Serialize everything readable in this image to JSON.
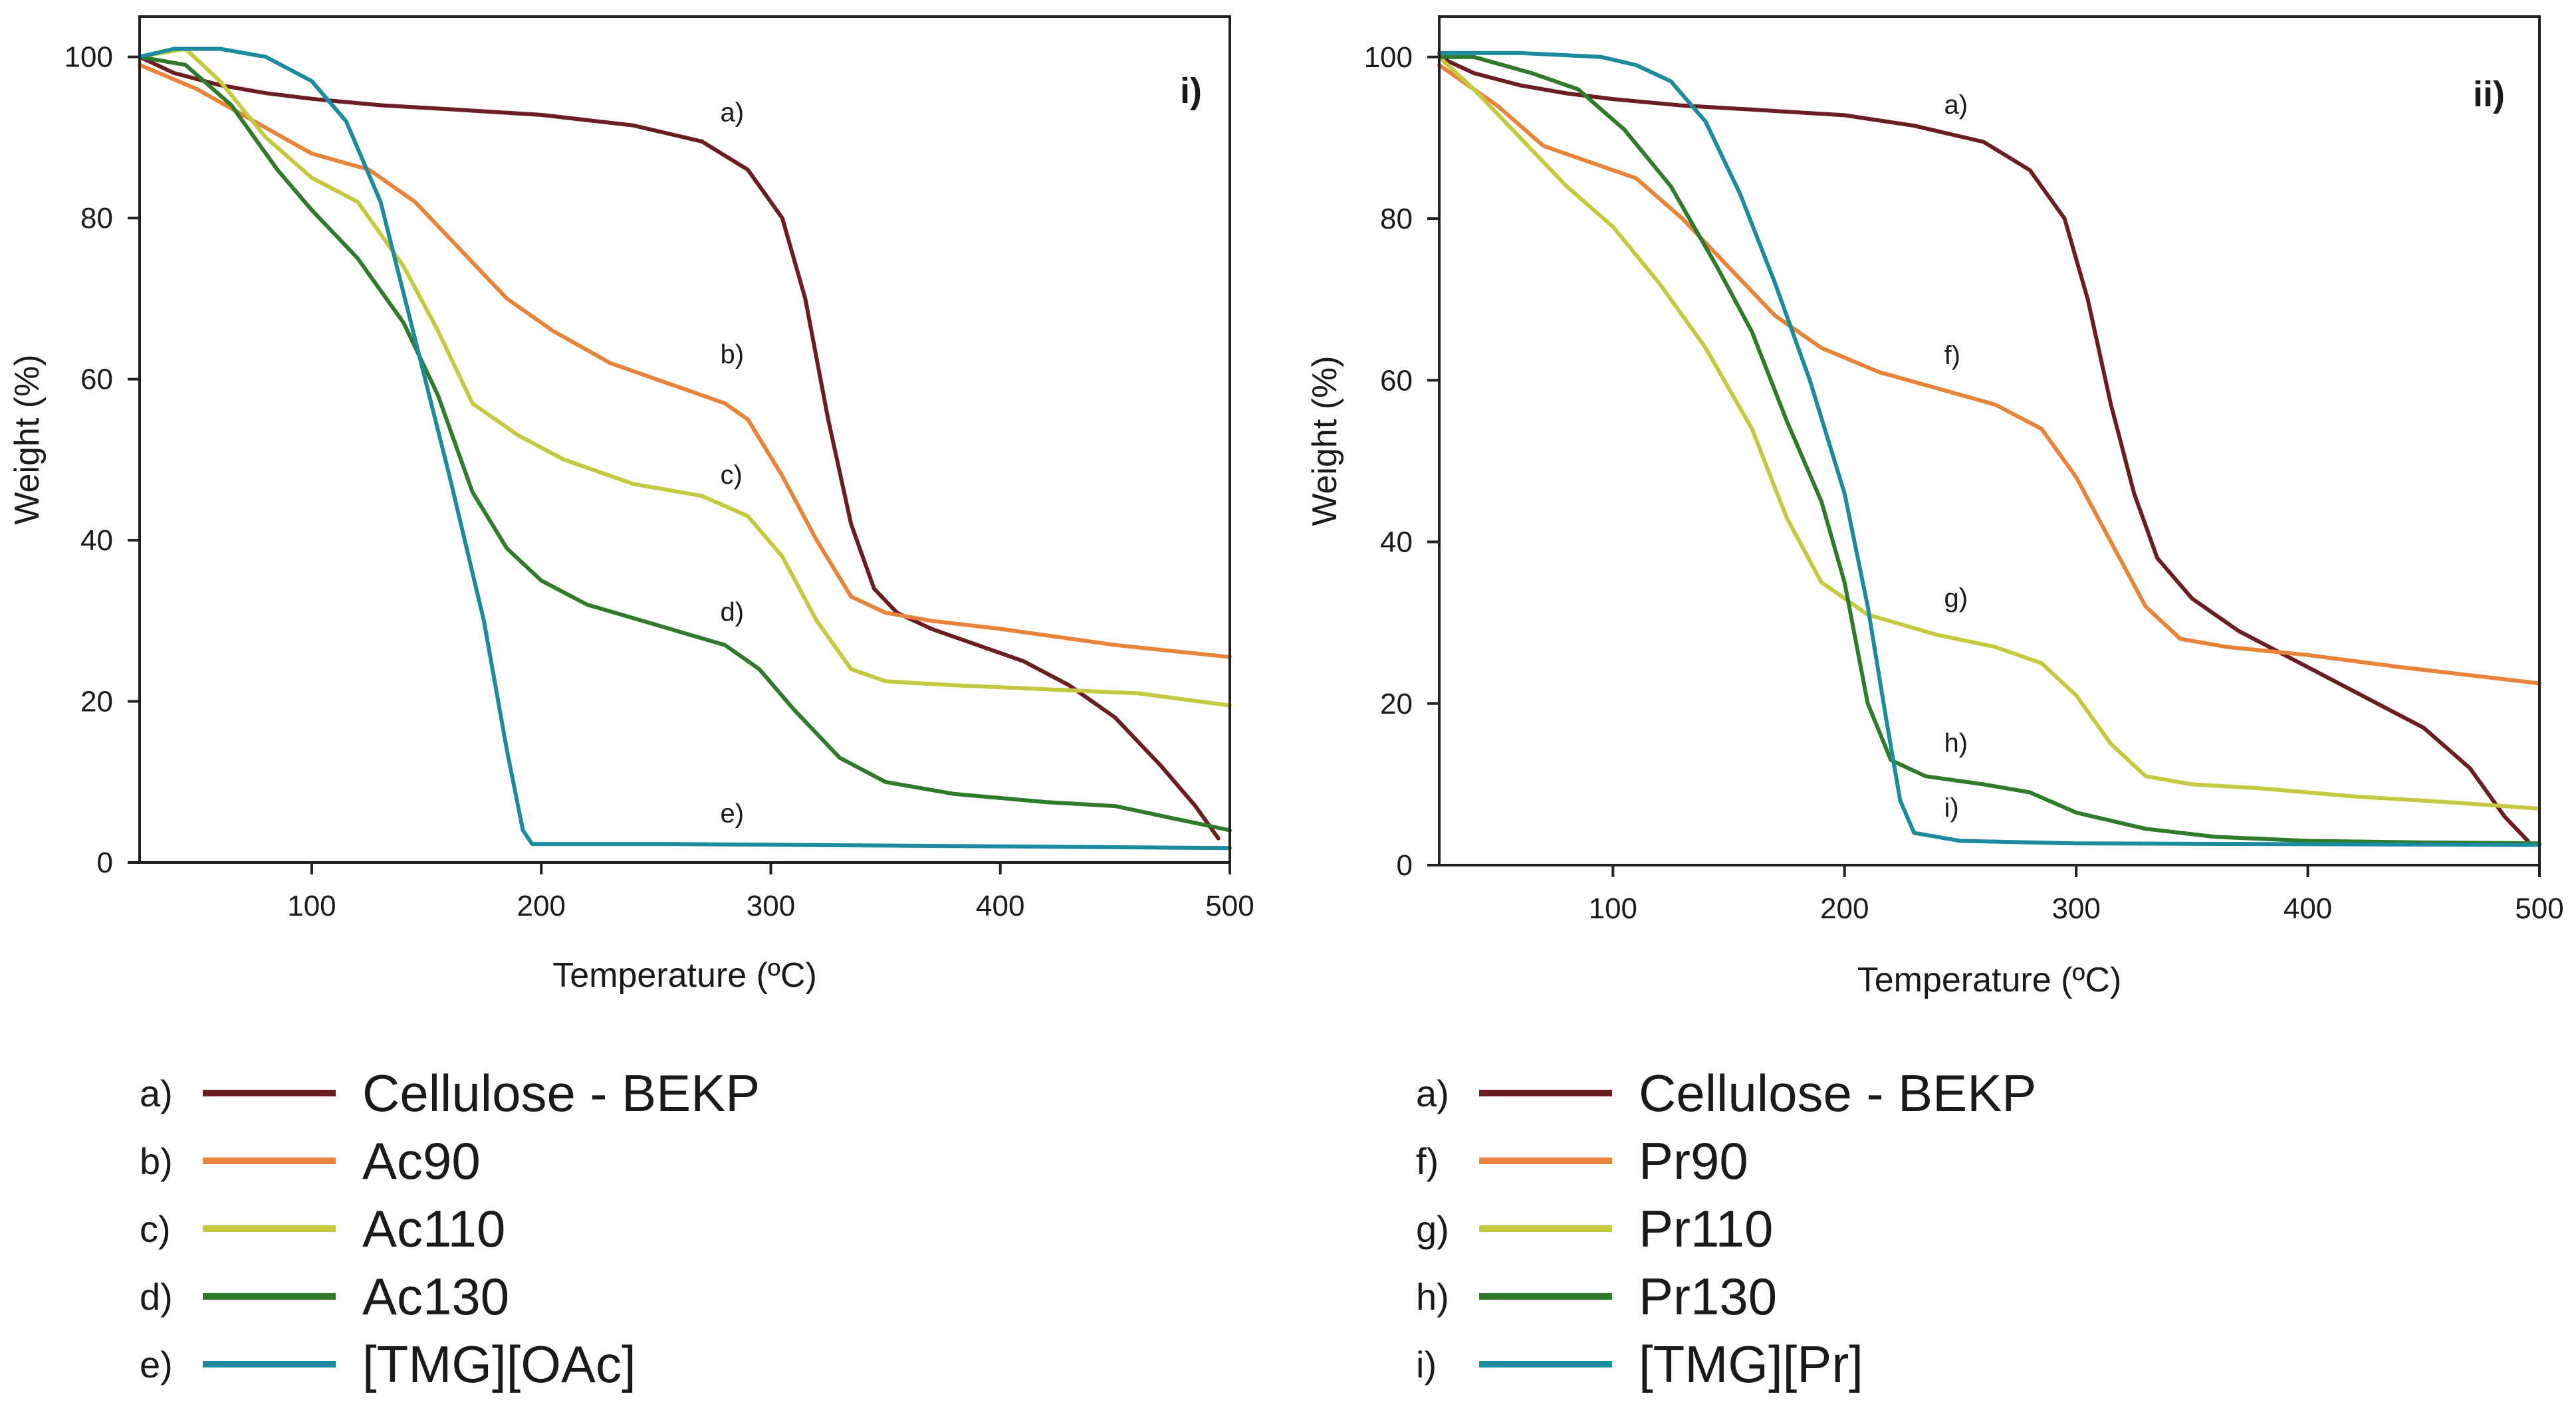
{
  "chart_data": [
    {
      "type": "line",
      "panel_label": "i)",
      "xlabel": "Temperature (ºC)",
      "ylabel": "Weight (%)",
      "xlim": [
        25,
        500
      ],
      "ylim": [
        0,
        105
      ],
      "xticks": [
        100,
        200,
        300,
        400,
        500
      ],
      "yticks": [
        0,
        20,
        40,
        60,
        80,
        100
      ],
      "series": [
        {
          "marker": "a)",
          "name": "Cellulose - BEKP",
          "color": "#6b1e22",
          "label_pos": [
            278,
            92
          ],
          "points": [
            [
              25,
              100
            ],
            [
              40,
              98
            ],
            [
              60,
              96.5
            ],
            [
              80,
              95.5
            ],
            [
              100,
              94.8
            ],
            [
              130,
              94
            ],
            [
              160,
              93.5
            ],
            [
              200,
              92.8
            ],
            [
              240,
              91.5
            ],
            [
              270,
              89.5
            ],
            [
              290,
              86
            ],
            [
              305,
              80
            ],
            [
              315,
              70
            ],
            [
              325,
              55
            ],
            [
              335,
              42
            ],
            [
              345,
              34
            ],
            [
              355,
              31
            ],
            [
              370,
              29
            ],
            [
              390,
              27
            ],
            [
              410,
              25
            ],
            [
              430,
              22
            ],
            [
              450,
              18
            ],
            [
              470,
              12
            ],
            [
              485,
              7
            ],
            [
              495,
              3
            ]
          ]
        },
        {
          "marker": "b)",
          "name": "Ac90",
          "color": "#e8843a",
          "label_pos": [
            278,
            62
          ],
          "points": [
            [
              25,
              99
            ],
            [
              50,
              96
            ],
            [
              75,
              92
            ],
            [
              100,
              88
            ],
            [
              125,
              86
            ],
            [
              145,
              82
            ],
            [
              165,
              76
            ],
            [
              185,
              70
            ],
            [
              205,
              66
            ],
            [
              230,
              62
            ],
            [
              260,
              59
            ],
            [
              280,
              57
            ],
            [
              290,
              55
            ],
            [
              305,
              48
            ],
            [
              320,
              40
            ],
            [
              335,
              33
            ],
            [
              350,
              31
            ],
            [
              370,
              30
            ],
            [
              400,
              29
            ],
            [
              450,
              27
            ],
            [
              500,
              25.5
            ]
          ]
        },
        {
          "marker": "c)",
          "name": "Ac110",
          "color": "#c5c93f",
          "label_pos": [
            278,
            47
          ],
          "points": [
            [
              25,
              100
            ],
            [
              45,
              101
            ],
            [
              60,
              97
            ],
            [
              80,
              90
            ],
            [
              100,
              85
            ],
            [
              120,
              82
            ],
            [
              140,
              74
            ],
            [
              155,
              66
            ],
            [
              170,
              57
            ],
            [
              190,
              53
            ],
            [
              210,
              50
            ],
            [
              240,
              47
            ],
            [
              270,
              45.5
            ],
            [
              290,
              43
            ],
            [
              305,
              38
            ],
            [
              320,
              30
            ],
            [
              335,
              24
            ],
            [
              350,
              22.5
            ],
            [
              380,
              22
            ],
            [
              420,
              21.5
            ],
            [
              460,
              21
            ],
            [
              500,
              19.5
            ]
          ]
        },
        {
          "marker": "d)",
          "name": "Ac130",
          "color": "#2f7a2b",
          "label_pos": [
            278,
            30
          ],
          "points": [
            [
              25,
              100
            ],
            [
              45,
              99
            ],
            [
              65,
              94
            ],
            [
              85,
              86
            ],
            [
              100,
              81
            ],
            [
              120,
              75
            ],
            [
              140,
              67
            ],
            [
              155,
              58
            ],
            [
              170,
              46
            ],
            [
              185,
              39
            ],
            [
              200,
              35
            ],
            [
              220,
              32
            ],
            [
              250,
              29.5
            ],
            [
              280,
              27
            ],
            [
              295,
              24
            ],
            [
              310,
              19
            ],
            [
              330,
              13
            ],
            [
              350,
              10
            ],
            [
              380,
              8.5
            ],
            [
              420,
              7.5
            ],
            [
              450,
              7
            ],
            [
              475,
              5.5
            ],
            [
              500,
              4
            ]
          ]
        },
        {
          "marker": "e)",
          "name": "[TMG][OAc]",
          "color": "#1d8b9e",
          "label_pos": [
            278,
            5
          ],
          "points": [
            [
              25,
              100
            ],
            [
              40,
              101
            ],
            [
              60,
              101
            ],
            [
              80,
              100
            ],
            [
              100,
              97
            ],
            [
              115,
              92
            ],
            [
              130,
              82
            ],
            [
              145,
              65
            ],
            [
              160,
              48
            ],
            [
              175,
              30
            ],
            [
              185,
              14
            ],
            [
              192,
              4
            ],
            [
              196,
              2.3
            ],
            [
              250,
              2.3
            ],
            [
              350,
              2.1
            ],
            [
              450,
              1.9
            ],
            [
              500,
              1.8
            ]
          ]
        }
      ]
    },
    {
      "type": "line",
      "panel_label": "ii)",
      "xlabel": "Temperature (ºC)",
      "ylabel": "Weight (%)",
      "xlim": [
        25,
        500
      ],
      "ylim": [
        0,
        105
      ],
      "xticks": [
        100,
        200,
        300,
        400,
        500
      ],
      "yticks": [
        0,
        20,
        40,
        60,
        80,
        100
      ],
      "series": [
        {
          "marker": "a)",
          "name": "Cellulose - BEKP",
          "color": "#6b1e22",
          "label_pos": [
            243,
            93
          ],
          "points": [
            [
              25,
              100
            ],
            [
              40,
              98
            ],
            [
              60,
              96.5
            ],
            [
              80,
              95.5
            ],
            [
              100,
              94.8
            ],
            [
              130,
              94
            ],
            [
              160,
              93.5
            ],
            [
              200,
              92.8
            ],
            [
              230,
              91.5
            ],
            [
              260,
              89.5
            ],
            [
              280,
              86
            ],
            [
              295,
              80
            ],
            [
              305,
              70
            ],
            [
              315,
              57
            ],
            [
              325,
              46
            ],
            [
              335,
              38
            ],
            [
              350,
              33
            ],
            [
              370,
              29
            ],
            [
              390,
              26
            ],
            [
              410,
              23
            ],
            [
              430,
              20
            ],
            [
              450,
              17
            ],
            [
              470,
              12
            ],
            [
              485,
              6
            ],
            [
              495,
              3
            ]
          ]
        },
        {
          "marker": "f)",
          "name": "Pr90",
          "color": "#e8843a",
          "label_pos": [
            243,
            62
          ],
          "points": [
            [
              25,
              99
            ],
            [
              50,
              94
            ],
            [
              70,
              89
            ],
            [
              90,
              87
            ],
            [
              110,
              85
            ],
            [
              130,
              80
            ],
            [
              150,
              74
            ],
            [
              170,
              68
            ],
            [
              190,
              64
            ],
            [
              215,
              61
            ],
            [
              240,
              59
            ],
            [
              265,
              57
            ],
            [
              285,
              54
            ],
            [
              300,
              48
            ],
            [
              315,
              40
            ],
            [
              330,
              32
            ],
            [
              345,
              28
            ],
            [
              365,
              27
            ],
            [
              400,
              26
            ],
            [
              440,
              24.5
            ],
            [
              470,
              23.5
            ],
            [
              500,
              22.5
            ]
          ]
        },
        {
          "marker": "g)",
          "name": "Pr110",
          "color": "#c5c93f",
          "label_pos": [
            243,
            32
          ],
          "points": [
            [
              25,
              100
            ],
            [
              40,
              96
            ],
            [
              60,
              90
            ],
            [
              80,
              84
            ],
            [
              100,
              79
            ],
            [
              120,
              72
            ],
            [
              140,
              64
            ],
            [
              160,
              54
            ],
            [
              175,
              43
            ],
            [
              190,
              35
            ],
            [
              210,
              31
            ],
            [
              240,
              28.5
            ],
            [
              265,
              27
            ],
            [
              285,
              25
            ],
            [
              300,
              21
            ],
            [
              315,
              15
            ],
            [
              330,
              11
            ],
            [
              350,
              10
            ],
            [
              380,
              9.5
            ],
            [
              420,
              8.5
            ],
            [
              460,
              7.8
            ],
            [
              500,
              7
            ]
          ]
        },
        {
          "marker": "h)",
          "name": "Pr130",
          "color": "#2f7a2b",
          "label_pos": [
            243,
            14
          ],
          "points": [
            [
              25,
              100
            ],
            [
              40,
              100
            ],
            [
              65,
              98
            ],
            [
              85,
              96
            ],
            [
              105,
              91
            ],
            [
              125,
              84
            ],
            [
              145,
              74
            ],
            [
              160,
              66
            ],
            [
              175,
              55
            ],
            [
              190,
              45
            ],
            [
              200,
              35
            ],
            [
              210,
              20
            ],
            [
              220,
              13
            ],
            [
              235,
              11
            ],
            [
              260,
              10
            ],
            [
              280,
              9
            ],
            [
              300,
              6.5
            ],
            [
              330,
              4.5
            ],
            [
              360,
              3.5
            ],
            [
              400,
              3
            ],
            [
              450,
              2.8
            ],
            [
              500,
              2.7
            ]
          ]
        },
        {
          "marker": "i)",
          "name": "[TMG][Pr]",
          "color": "#1d8b9e",
          "label_pos": [
            243,
            6
          ],
          "points": [
            [
              25,
              100.5
            ],
            [
              60,
              100.5
            ],
            [
              95,
              100
            ],
            [
              110,
              99
            ],
            [
              125,
              97
            ],
            [
              140,
              92
            ],
            [
              155,
              83
            ],
            [
              170,
              72
            ],
            [
              185,
              60
            ],
            [
              200,
              46
            ],
            [
              210,
              32
            ],
            [
              218,
              18
            ],
            [
              224,
              8
            ],
            [
              230,
              4
            ],
            [
              250,
              3
            ],
            [
              300,
              2.7
            ],
            [
              400,
              2.6
            ],
            [
              500,
              2.5
            ]
          ]
        }
      ]
    }
  ],
  "legends": [
    {
      "items": [
        {
          "marker": "a)",
          "name": "Cellulose - BEKP",
          "color": "#6b1e22"
        },
        {
          "marker": "b)",
          "name": "Ac90",
          "color": "#e8843a"
        },
        {
          "marker": "c)",
          "name": "Ac110",
          "color": "#c5c93f"
        },
        {
          "marker": "d)",
          "name": "Ac130",
          "color": "#2f7a2b"
        },
        {
          "marker": "e)",
          "name": "[TMG][OAc]",
          "color": "#1d8b9e"
        }
      ]
    },
    {
      "items": [
        {
          "marker": "a)",
          "name": "Cellulose - BEKP",
          "color": "#6b1e22"
        },
        {
          "marker": "f)",
          "name": "Pr90",
          "color": "#e8843a"
        },
        {
          "marker": "g)",
          "name": "Pr110",
          "color": "#c5c93f"
        },
        {
          "marker": "h)",
          "name": "Pr130",
          "color": "#2f7a2b"
        },
        {
          "marker": "i)",
          "name": "[TMG][Pr]",
          "color": "#1d8b9e"
        }
      ]
    }
  ]
}
